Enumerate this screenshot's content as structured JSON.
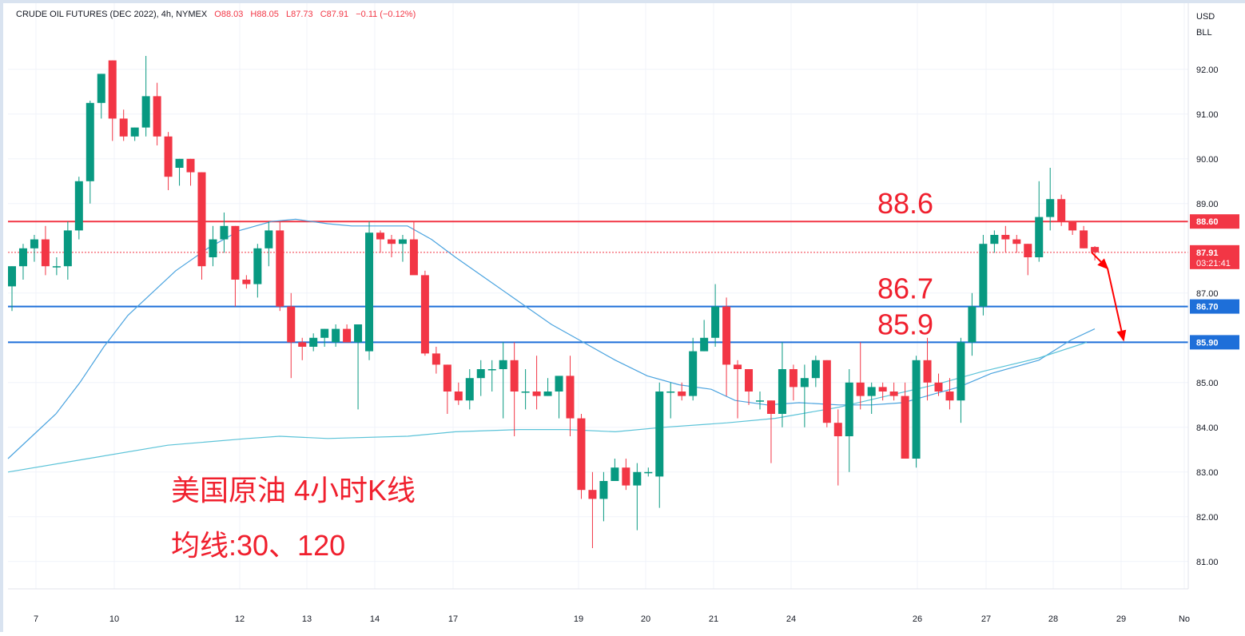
{
  "legend": {
    "symbol": "CRUDE OIL FUTURES (DEC 2022), 4h, NYMEX",
    "open": "O88.03",
    "high": "H88.05",
    "low": "L87.73",
    "close": "C87.91",
    "change": "−0.11 (−0.12%)"
  },
  "currency": "USD",
  "unit": "BLL",
  "annotation": {
    "line1": "美国原油 4小时K线",
    "line2": "均线:30、120"
  },
  "price_tags": {
    "last": "87.91",
    "countdown": "03:21:41"
  },
  "colors": {
    "up": "#089981",
    "down": "#f23645",
    "ma30": "#4aa3df",
    "ma120": "#5bc3d8",
    "resistance": "#f23645",
    "support": "#2962ff",
    "annotation": "#f0202e"
  },
  "chart_data": {
    "type": "candlestick",
    "ylim": [
      80.55,
      93.55
    ],
    "y_ticks": [
      "81.00",
      "82.00",
      "83.00",
      "84.00",
      "85.00",
      "87.00",
      "89.00",
      "90.00",
      "91.00",
      "92.00"
    ],
    "x_labels": [
      "7",
      "10",
      "12",
      "13",
      "14",
      "17",
      "19",
      "20",
      "21",
      "24",
      "26",
      "27",
      "28",
      "29",
      "No"
    ],
    "horizontal_levels": [
      {
        "value": 88.6,
        "label": "88.6",
        "tag": "88.60",
        "color": "red"
      },
      {
        "value": 86.7,
        "label": "86.7",
        "tag": "86.70",
        "color": "blue"
      },
      {
        "value": 85.9,
        "label": "85.9",
        "tag": "85.90",
        "color": "blue"
      }
    ],
    "last_price": 87.91,
    "candles": [
      [
        87.15,
        87.6,
        86.6,
        87.6
      ],
      [
        87.6,
        88.1,
        87.3,
        88.0
      ],
      [
        88.0,
        88.3,
        87.7,
        88.2
      ],
      [
        88.2,
        88.5,
        87.4,
        87.6
      ],
      [
        87.6,
        87.8,
        87.4,
        87.6
      ],
      [
        87.6,
        88.6,
        87.3,
        88.4
      ],
      [
        88.4,
        89.6,
        88.2,
        89.5
      ],
      [
        89.5,
        91.3,
        89.0,
        91.25
      ],
      [
        91.25,
        91.9,
        90.9,
        91.9
      ],
      [
        92.2,
        92.2,
        90.4,
        90.9
      ],
      [
        90.9,
        91.1,
        90.4,
        90.5
      ],
      [
        90.5,
        90.7,
        90.4,
        90.7
      ],
      [
        90.7,
        92.3,
        90.5,
        91.4
      ],
      [
        91.4,
        91.7,
        90.3,
        90.5
      ],
      [
        90.5,
        90.6,
        89.3,
        89.6
      ],
      [
        89.8,
        90.0,
        89.4,
        90.0
      ],
      [
        90.0,
        90.0,
        89.4,
        89.7
      ],
      [
        89.7,
        89.7,
        87.3,
        87.6
      ],
      [
        87.8,
        88.5,
        87.6,
        88.2
      ],
      [
        88.2,
        88.8,
        87.9,
        88.5
      ],
      [
        88.5,
        88.5,
        86.7,
        87.3
      ],
      [
        87.3,
        87.4,
        87.1,
        87.2
      ],
      [
        87.2,
        88.1,
        86.9,
        88.0
      ],
      [
        88.0,
        88.6,
        87.6,
        88.4
      ],
      [
        88.4,
        88.6,
        86.6,
        86.7
      ],
      [
        86.7,
        87.0,
        85.1,
        85.9
      ],
      [
        85.9,
        86.0,
        85.5,
        85.8
      ],
      [
        85.8,
        86.1,
        85.7,
        86.0
      ],
      [
        86.0,
        86.2,
        85.8,
        86.2
      ],
      [
        85.9,
        86.3,
        85.8,
        86.2
      ],
      [
        86.2,
        86.3,
        85.9,
        85.9
      ],
      [
        85.9,
        86.3,
        84.4,
        86.3
      ],
      [
        85.7,
        88.6,
        85.5,
        88.35
      ],
      [
        88.35,
        88.4,
        87.9,
        88.2
      ],
      [
        88.2,
        88.3,
        87.8,
        88.1
      ],
      [
        88.1,
        88.3,
        87.7,
        88.2
      ],
      [
        88.2,
        88.6,
        87.5,
        87.4
      ],
      [
        87.4,
        87.5,
        85.6,
        85.65
      ],
      [
        85.65,
        85.8,
        85.2,
        85.4
      ],
      [
        85.4,
        85.4,
        84.3,
        84.8
      ],
      [
        84.8,
        85.0,
        84.5,
        84.6
      ],
      [
        84.6,
        85.3,
        84.4,
        85.1
      ],
      [
        85.1,
        85.5,
        84.7,
        85.3
      ],
      [
        85.3,
        85.5,
        84.8,
        85.3
      ],
      [
        85.3,
        85.9,
        84.2,
        85.5
      ],
      [
        85.5,
        85.9,
        83.8,
        84.8
      ],
      [
        84.8,
        85.3,
        84.4,
        84.8
      ],
      [
        84.8,
        85.6,
        84.4,
        84.7
      ],
      [
        84.7,
        85.1,
        84.7,
        84.8
      ],
      [
        84.8,
        85.1,
        84.2,
        85.15
      ],
      [
        85.15,
        85.6,
        83.8,
        84.2
      ],
      [
        84.2,
        84.3,
        82.4,
        82.6
      ],
      [
        82.6,
        83.0,
        81.3,
        82.4
      ],
      [
        82.4,
        83.0,
        81.9,
        82.8
      ],
      [
        82.8,
        83.3,
        82.8,
        83.1
      ],
      [
        83.1,
        83.3,
        82.6,
        82.7
      ],
      [
        82.7,
        83.2,
        81.7,
        83.0
      ],
      [
        83.0,
        83.1,
        82.9,
        83.0
      ],
      [
        82.9,
        85.0,
        82.2,
        84.8
      ],
      [
        84.8,
        85.0,
        84.2,
        84.8
      ],
      [
        84.8,
        85.0,
        84.6,
        84.7
      ],
      [
        84.7,
        86.0,
        84.6,
        85.7
      ],
      [
        85.7,
        86.4,
        85.7,
        86.0
      ],
      [
        86.0,
        87.2,
        85.8,
        86.7
      ],
      [
        86.7,
        86.9,
        84.7,
        85.4
      ],
      [
        85.4,
        85.5,
        84.2,
        85.3
      ],
      [
        85.3,
        85.3,
        84.5,
        84.8
      ],
      [
        84.6,
        84.8,
        84.4,
        84.6
      ],
      [
        84.6,
        84.6,
        83.2,
        84.3
      ],
      [
        84.3,
        85.9,
        84.0,
        85.3
      ],
      [
        85.3,
        85.4,
        84.6,
        84.9
      ],
      [
        84.9,
        85.4,
        84.0,
        85.1
      ],
      [
        85.1,
        85.6,
        84.9,
        85.5
      ],
      [
        85.5,
        85.5,
        84.0,
        84.1
      ],
      [
        84.1,
        84.4,
        82.7,
        83.8
      ],
      [
        83.8,
        85.3,
        83.0,
        85.0
      ],
      [
        85.0,
        85.9,
        84.4,
        84.7
      ],
      [
        84.7,
        85.0,
        84.3,
        84.9
      ],
      [
        84.9,
        85.0,
        84.6,
        84.8
      ],
      [
        84.8,
        85.0,
        84.6,
        84.7
      ],
      [
        84.7,
        85.0,
        83.3,
        83.3
      ],
      [
        83.3,
        85.6,
        83.1,
        85.5
      ],
      [
        85.5,
        86.0,
        84.6,
        85.0
      ],
      [
        85.0,
        85.2,
        84.7,
        84.8
      ],
      [
        84.8,
        85.1,
        84.4,
        84.6
      ],
      [
        84.6,
        86.0,
        84.1,
        85.9
      ],
      [
        85.9,
        87.0,
        85.6,
        86.7
      ],
      [
        86.7,
        88.3,
        86.5,
        88.1
      ],
      [
        88.1,
        88.4,
        87.9,
        88.3
      ],
      [
        88.3,
        88.5,
        87.9,
        88.2
      ],
      [
        88.2,
        88.3,
        87.9,
        88.1
      ],
      [
        88.1,
        88.1,
        87.4,
        87.8
      ],
      [
        87.8,
        89.5,
        87.7,
        88.7
      ],
      [
        88.7,
        89.8,
        88.4,
        89.1
      ],
      [
        89.1,
        89.2,
        88.5,
        88.6
      ],
      [
        88.6,
        88.6,
        88.3,
        88.4
      ],
      [
        88.4,
        88.5,
        88.0,
        88.0
      ],
      [
        88.03,
        88.05,
        87.73,
        87.91
      ]
    ],
    "series": [
      {
        "name": "MA30",
        "values": [
          [
            0,
            83.3
          ],
          [
            30,
            83.8
          ],
          [
            60,
            84.3
          ],
          [
            90,
            85.0
          ],
          [
            120,
            85.8
          ],
          [
            150,
            86.5
          ],
          [
            180,
            87.0
          ],
          [
            210,
            87.5
          ],
          [
            250,
            88.0
          ],
          [
            290,
            88.4
          ],
          [
            330,
            88.6
          ],
          [
            360,
            88.65
          ],
          [
            400,
            88.55
          ],
          [
            430,
            88.5
          ],
          [
            460,
            88.5
          ],
          [
            500,
            88.5
          ],
          [
            530,
            88.2
          ],
          [
            560,
            87.8
          ],
          [
            600,
            87.3
          ],
          [
            640,
            86.8
          ],
          [
            680,
            86.3
          ],
          [
            720,
            85.9
          ],
          [
            760,
            85.5
          ],
          [
            800,
            85.15
          ],
          [
            840,
            84.95
          ],
          [
            880,
            84.85
          ],
          [
            910,
            84.6
          ],
          [
            950,
            84.5
          ],
          [
            990,
            84.55
          ],
          [
            1040,
            84.5
          ],
          [
            1080,
            84.5
          ],
          [
            1120,
            84.55
          ],
          [
            1150,
            84.7
          ],
          [
            1190,
            84.9
          ],
          [
            1230,
            85.2
          ],
          [
            1290,
            85.5
          ],
          [
            1330,
            85.95
          ],
          [
            1360,
            86.2
          ]
        ]
      },
      {
        "name": "MA120",
        "values": [
          [
            0,
            83.0
          ],
          [
            100,
            83.3
          ],
          [
            200,
            83.6
          ],
          [
            300,
            83.75
          ],
          [
            340,
            83.8
          ],
          [
            400,
            83.75
          ],
          [
            500,
            83.8
          ],
          [
            560,
            83.9
          ],
          [
            640,
            83.95
          ],
          [
            700,
            83.95
          ],
          [
            760,
            83.9
          ],
          [
            820,
            84.0
          ],
          [
            900,
            84.1
          ],
          [
            960,
            84.2
          ],
          [
            1040,
            84.45
          ],
          [
            1100,
            84.7
          ],
          [
            1160,
            84.95
          ],
          [
            1220,
            85.25
          ],
          [
            1290,
            85.55
          ],
          [
            1350,
            85.9
          ]
        ]
      }
    ],
    "forecast_arrows": [
      [
        87.91,
        87.6
      ],
      [
        87.6,
        85.9
      ]
    ]
  }
}
